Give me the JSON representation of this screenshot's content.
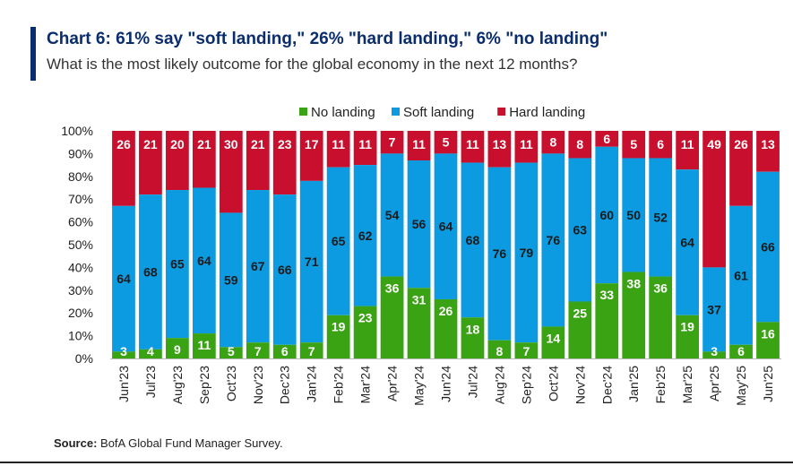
{
  "header": {
    "title": "Chart 6: 61% say \"soft landing,\" 26% \"hard landing,\" 6% \"no landing\"",
    "subtitle": "What is the most likely outcome for the global economy in the next 12 months?"
  },
  "footer": {
    "source_label": "Source:",
    "source_text": "BofA Global Fund Manager Survey."
  },
  "colors": {
    "no_landing": "#3aa314",
    "soft_landing": "#0c9be0",
    "hard_landing": "#c8102e",
    "accent": "#0a2d6e"
  },
  "chart_data": {
    "type": "bar",
    "stacked": true,
    "title": "Chart 6: 61% say \"soft landing,\" 26% \"hard landing,\" 6% \"no landing\"",
    "ylabel": "",
    "xlabel": "",
    "ylim": [
      0,
      100
    ],
    "yticks": [
      "0%",
      "10%",
      "20%",
      "30%",
      "40%",
      "50%",
      "60%",
      "70%",
      "80%",
      "90%",
      "100%"
    ],
    "legend_position": "top-center",
    "categories": [
      "Jun'23",
      "Jul'23",
      "Aug'23",
      "Sep'23",
      "Oct'23",
      "Nov'23",
      "Dec'23",
      "Jan'24",
      "Feb'24",
      "Mar'24",
      "Apr'24",
      "May'24",
      "Jun'24",
      "Jul'24",
      "Aug'24",
      "Sep'24",
      "Oct'24",
      "Nov'24",
      "Dec'24",
      "Jan'25",
      "Feb'25",
      "Mar'25",
      "Apr'25",
      "May'25",
      "Jun'25"
    ],
    "series": [
      {
        "name": "No landing",
        "color": "#3aa314",
        "values": [
          3,
          4,
          9,
          11,
          5,
          7,
          6,
          7,
          19,
          23,
          36,
          31,
          26,
          18,
          8,
          7,
          14,
          25,
          33,
          38,
          36,
          19,
          3,
          6,
          16
        ]
      },
      {
        "name": "Soft landing",
        "color": "#0c9be0",
        "values": [
          64,
          68,
          65,
          64,
          59,
          67,
          66,
          71,
          65,
          62,
          54,
          56,
          64,
          68,
          76,
          79,
          76,
          63,
          60,
          50,
          52,
          64,
          37,
          61,
          66
        ]
      },
      {
        "name": "Hard landing",
        "color": "#c8102e",
        "values": [
          26,
          21,
          20,
          21,
          30,
          21,
          23,
          17,
          11,
          11,
          7,
          11,
          5,
          11,
          13,
          11,
          8,
          8,
          6,
          5,
          6,
          11,
          49,
          26,
          13
        ]
      }
    ]
  }
}
